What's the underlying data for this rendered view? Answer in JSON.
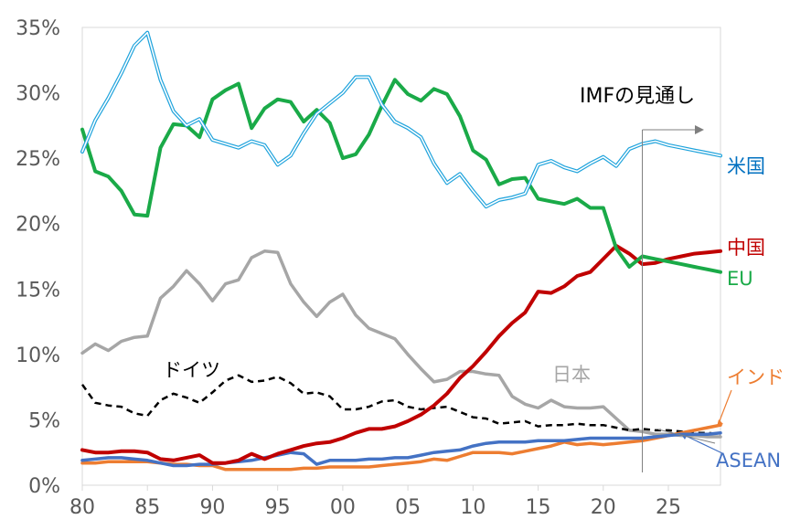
{
  "chart_data": {
    "type": "line",
    "title": "",
    "xlabel": "",
    "ylabel": "",
    "ylim": [
      0,
      35
    ],
    "xlim": [
      1980,
      2029
    ],
    "y_ticks": [
      0,
      5,
      10,
      15,
      20,
      25,
      30,
      35
    ],
    "y_tick_labels": [
      "0%",
      "5%",
      "10%",
      "15%",
      "20%",
      "25%",
      "30%",
      "35%"
    ],
    "x_ticks": [
      1980,
      1985,
      1990,
      1995,
      2000,
      2005,
      2010,
      2015,
      2020,
      2025
    ],
    "x_tick_labels": [
      "80",
      "85",
      "90",
      "95",
      "00",
      "05",
      "10",
      "15",
      "20",
      "25"
    ],
    "grid": "none",
    "forecast_start": 2023,
    "forecast_label": "IMFの見通し",
    "x": [
      1980,
      1981,
      1982,
      1983,
      1984,
      1985,
      1986,
      1987,
      1988,
      1989,
      1990,
      1991,
      1992,
      1993,
      1994,
      1995,
      1996,
      1997,
      1998,
      1999,
      2000,
      2001,
      2002,
      2003,
      2004,
      2005,
      2006,
      2007,
      2008,
      2009,
      2010,
      2011,
      2012,
      2013,
      2014,
      2015,
      2016,
      2017,
      2018,
      2019,
      2020,
      2021,
      2022,
      2023,
      2024,
      2025,
      2026,
      2027,
      2028,
      2029
    ],
    "series": [
      {
        "name": "米国",
        "color": "#1fa3dc",
        "label_color": "#0070c0",
        "style": "double",
        "values": [
          25.5,
          27.9,
          29.6,
          31.5,
          33.6,
          34.6,
          31.0,
          28.6,
          27.5,
          28.0,
          26.4,
          26.1,
          25.8,
          26.3,
          26.0,
          24.5,
          25.2,
          26.9,
          28.4,
          29.2,
          30.0,
          31.2,
          31.2,
          29.1,
          27.8,
          27.3,
          26.6,
          24.6,
          23.1,
          23.8,
          22.5,
          21.3,
          21.8,
          22.0,
          22.3,
          24.5,
          24.8,
          24.3,
          24.0,
          24.6,
          25.1,
          24.4,
          25.7,
          26.1,
          26.3,
          26.0,
          25.8,
          25.6,
          25.4,
          25.2
        ]
      },
      {
        "name": "中国",
        "color": "#c00000",
        "label_color": "#c00000",
        "style": "solid",
        "values": [
          2.7,
          2.5,
          2.5,
          2.6,
          2.6,
          2.5,
          2.0,
          1.9,
          2.1,
          2.3,
          1.7,
          1.7,
          1.9,
          2.4,
          2.0,
          2.4,
          2.7,
          3.0,
          3.2,
          3.3,
          3.6,
          4.0,
          4.3,
          4.3,
          4.5,
          4.9,
          5.4,
          6.1,
          7.0,
          8.2,
          9.1,
          10.2,
          11.4,
          12.4,
          13.2,
          14.8,
          14.7,
          15.2,
          16.0,
          16.3,
          17.3,
          18.3,
          17.7,
          16.9,
          17.0,
          17.3,
          17.5,
          17.7,
          17.8,
          17.9
        ]
      },
      {
        "name": "EU",
        "color": "#1aaa48",
        "label_color": "#1aaa48",
        "style": "solid",
        "values": [
          27.2,
          24.0,
          23.6,
          22.5,
          20.7,
          20.6,
          25.8,
          27.6,
          27.5,
          26.6,
          29.5,
          30.2,
          30.7,
          27.3,
          28.8,
          29.5,
          29.3,
          27.8,
          28.7,
          27.7,
          25.0,
          25.3,
          26.8,
          29.0,
          31.0,
          29.9,
          29.4,
          30.3,
          29.9,
          28.2,
          25.6,
          24.9,
          23.0,
          23.4,
          23.5,
          21.9,
          21.7,
          21.5,
          21.9,
          21.2,
          21.2,
          18.1,
          16.7,
          17.5,
          17.3,
          17.1,
          16.9,
          16.7,
          16.5,
          16.3
        ]
      },
      {
        "name": "日本",
        "color": "#a6a6a6",
        "label_color": "#a6a6a6",
        "style": "solid",
        "values": [
          10.1,
          10.8,
          10.3,
          11.0,
          11.3,
          11.4,
          14.3,
          15.2,
          16.4,
          15.4,
          14.1,
          15.4,
          15.7,
          17.4,
          17.9,
          17.8,
          15.4,
          14.0,
          12.9,
          14.0,
          14.6,
          13.0,
          12.0,
          11.6,
          11.2,
          10.0,
          8.9,
          7.9,
          8.1,
          8.7,
          8.7,
          8.5,
          8.4,
          6.8,
          6.2,
          5.9,
          6.5,
          6.0,
          5.9,
          5.9,
          6.0,
          5.1,
          4.2,
          4.1,
          3.9,
          3.9,
          3.8,
          3.8,
          3.7,
          3.7
        ]
      },
      {
        "name": "ドイツ",
        "color": "#000000",
        "label_color": "#000000",
        "style": "dashed",
        "values": [
          7.7,
          6.3,
          6.1,
          6.0,
          5.5,
          5.3,
          6.5,
          7.0,
          6.7,
          6.3,
          7.1,
          8.0,
          8.4,
          7.9,
          8.0,
          8.3,
          7.8,
          7.0,
          7.1,
          6.8,
          5.8,
          5.8,
          6.0,
          6.4,
          6.5,
          6.0,
          5.8,
          5.9,
          6.0,
          5.6,
          5.2,
          5.1,
          4.7,
          4.8,
          4.9,
          4.5,
          4.6,
          4.6,
          4.7,
          4.6,
          4.6,
          4.4,
          4.2,
          4.3,
          4.2,
          4.2,
          4.1,
          4.0,
          4.0,
          3.9
        ]
      },
      {
        "name": "インド",
        "color": "#ed7d31",
        "label_color": "#ed7d31",
        "style": "solid",
        "values": [
          1.7,
          1.7,
          1.8,
          1.8,
          1.8,
          1.8,
          1.7,
          1.6,
          1.6,
          1.5,
          1.5,
          1.2,
          1.2,
          1.2,
          1.2,
          1.2,
          1.2,
          1.3,
          1.3,
          1.4,
          1.4,
          1.4,
          1.4,
          1.5,
          1.6,
          1.7,
          1.8,
          2.0,
          1.9,
          2.2,
          2.5,
          2.5,
          2.5,
          2.4,
          2.6,
          2.8,
          3.0,
          3.3,
          3.1,
          3.2,
          3.1,
          3.2,
          3.3,
          3.4,
          3.6,
          3.8,
          4.0,
          4.2,
          4.4,
          4.6
        ]
      },
      {
        "name": "ASEAN",
        "color": "#4472c4",
        "label_color": "#4472c4",
        "style": "solid",
        "values": [
          1.9,
          2.0,
          2.1,
          2.1,
          2.0,
          1.9,
          1.7,
          1.5,
          1.5,
          1.6,
          1.6,
          1.7,
          1.8,
          1.9,
          2.1,
          2.3,
          2.5,
          2.4,
          1.6,
          1.9,
          1.9,
          1.9,
          2.0,
          2.0,
          2.1,
          2.1,
          2.3,
          2.5,
          2.6,
          2.7,
          3.0,
          3.2,
          3.3,
          3.3,
          3.3,
          3.4,
          3.4,
          3.4,
          3.5,
          3.6,
          3.6,
          3.6,
          3.6,
          3.6,
          3.7,
          3.8,
          3.9,
          3.9,
          3.9,
          4.0
        ]
      }
    ]
  }
}
